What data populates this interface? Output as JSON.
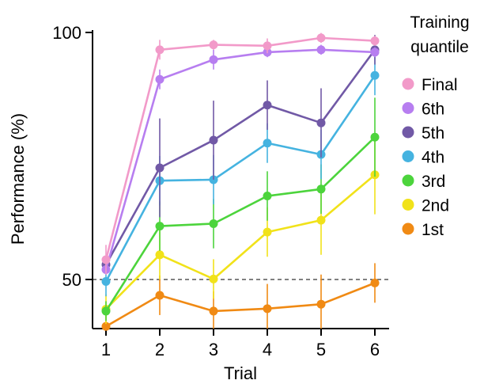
{
  "chart_data": {
    "type": "line",
    "xlabel": "Trial",
    "ylabel": "Performance (%)",
    "x": [
      1,
      2,
      3,
      4,
      5,
      6
    ],
    "x_ticks": [
      "1",
      "2",
      "3",
      "4",
      "5",
      "6"
    ],
    "y_ticks": [
      "50",
      "100"
    ],
    "y_tick_values": [
      50,
      100
    ],
    "ylim": [
      40,
      100
    ],
    "reference_line": 50,
    "legend_title": [
      "Training",
      "quantile"
    ],
    "legend_position": "right",
    "series": [
      {
        "name": "Final",
        "color": "#f29ac9",
        "values": [
          54,
          96.5,
          97.5,
          97.3,
          98.9,
          98.3
        ],
        "err": [
          3,
          2,
          1,
          1.5,
          1,
          1
        ]
      },
      {
        "name": "6th",
        "color": "#b77ef0",
        "values": [
          52,
          90.5,
          94.5,
          96,
          96.5,
          96
        ],
        "err": [
          1,
          2,
          2,
          1,
          1,
          1
        ]
      },
      {
        "name": "5th",
        "color": "#7159a6",
        "values": [
          53,
          72.6,
          78.2,
          85.3,
          81.7,
          96.5
        ],
        "err": [
          1,
          10,
          8,
          5,
          7,
          3
        ]
      },
      {
        "name": "4th",
        "color": "#45b3e0",
        "values": [
          49.6,
          70,
          70.2,
          77.6,
          75.3,
          91.3
        ],
        "err": [
          3,
          5,
          5,
          4,
          5,
          4
        ]
      },
      {
        "name": "3rd",
        "color": "#4cd43c",
        "values": [
          43.6,
          60.8,
          61.3,
          66.9,
          68.3,
          78.8
        ],
        "err": [
          2,
          5,
          5,
          5,
          5,
          8
        ]
      },
      {
        "name": "2nd",
        "color": "#f1e21a",
        "values": [
          44,
          55,
          50.1,
          59.6,
          62,
          71.2
        ],
        "err": [
          3,
          5,
          4,
          5,
          7,
          8
        ]
      },
      {
        "name": "1st",
        "color": "#f08a14",
        "values": [
          40.5,
          46.8,
          43.6,
          44.1,
          45,
          49.3
        ],
        "err": [
          3,
          4,
          4,
          5,
          6,
          4
        ]
      }
    ]
  }
}
